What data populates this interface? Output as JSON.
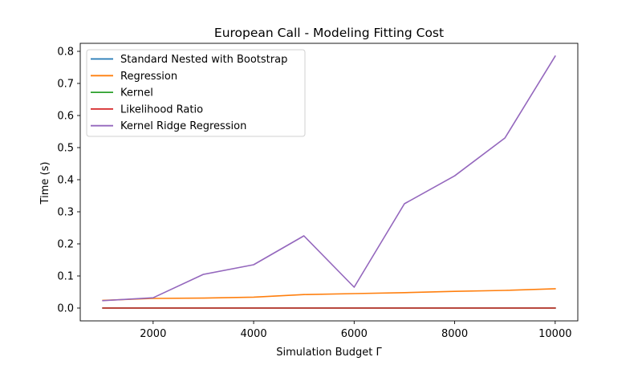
{
  "chart_data": {
    "type": "line",
    "title": "European Call - Modeling Fitting Cost",
    "xlabel": "Simulation Budget Γ",
    "ylabel": "Time (s)",
    "xlim": [
      550,
      10450
    ],
    "ylim": [
      -0.04,
      0.825
    ],
    "xticks": [
      2000,
      4000,
      6000,
      8000,
      10000
    ],
    "yticks": [
      0.0,
      0.1,
      0.2,
      0.3,
      0.4,
      0.5,
      0.6,
      0.7,
      0.8
    ],
    "x": [
      1000,
      2000,
      3000,
      4000,
      5000,
      6000,
      7000,
      8000,
      9000,
      10000
    ],
    "grid": false,
    "legend_position": "upper-left",
    "series": [
      {
        "name": "Standard Nested with Bootstrap",
        "color": "#1f77b4",
        "values": [
          0.0,
          0.0,
          0.0,
          0.0,
          0.0,
          0.0,
          0.0,
          0.0,
          0.0,
          0.0
        ]
      },
      {
        "name": "Regression",
        "color": "#ff7f0e",
        "values": [
          0.024,
          0.03,
          0.031,
          0.034,
          0.042,
          0.045,
          0.048,
          0.052,
          0.055,
          0.06
        ]
      },
      {
        "name": "Kernel",
        "color": "#2ca02c",
        "values": [
          0.0,
          0.0,
          0.0,
          0.0,
          0.0,
          0.0,
          0.0,
          0.0,
          0.0,
          0.0
        ]
      },
      {
        "name": "Likelihood Ratio",
        "color": "#d62728",
        "values": [
          0.0,
          0.0,
          0.0,
          0.0,
          0.0,
          0.0,
          0.0,
          0.0,
          0.0,
          0.0
        ]
      },
      {
        "name": "Kernel Ridge Regression",
        "color": "#9467bd",
        "values": [
          0.023,
          0.032,
          0.105,
          0.135,
          0.225,
          0.065,
          0.325,
          0.412,
          0.53,
          0.785
        ]
      }
    ]
  }
}
